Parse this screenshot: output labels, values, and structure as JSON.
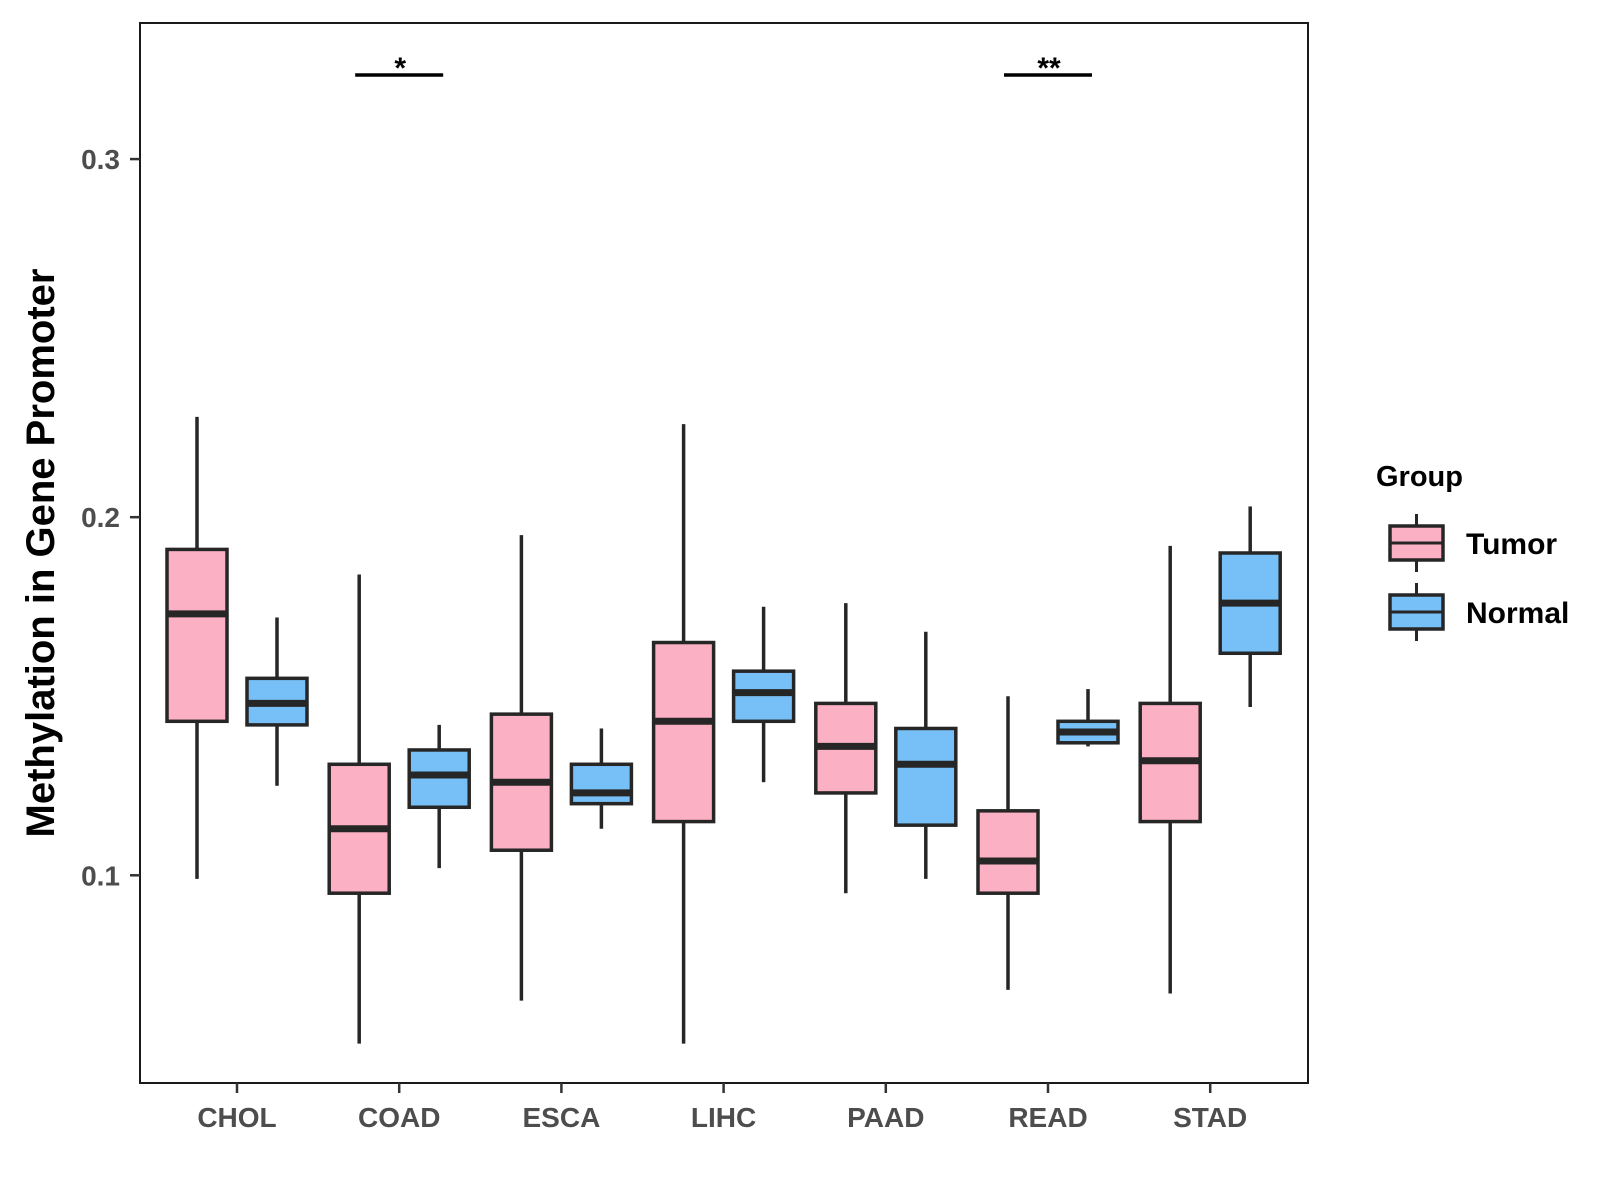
{
  "chart_data": {
    "type": "boxplot",
    "title": "",
    "xlabel": "",
    "ylabel": "Methylation in Gene Promoter",
    "ylim": [
      0.042,
      0.338
    ],
    "yticks": [
      0.1,
      0.2,
      0.3
    ],
    "ytick_labels": [
      "0.1",
      "0.2",
      "0.3"
    ],
    "categories": [
      "CHOL",
      "COAD",
      "ESCA",
      "LIHC",
      "PAAD",
      "READ",
      "STAD"
    ],
    "legend": {
      "title": "Group",
      "placement": "right",
      "entries": [
        "Tumor",
        "Normal"
      ]
    },
    "series": [
      {
        "name": "Tumor",
        "color": "#fbb1c3",
        "boxes": [
          {
            "whisker_low": 0.099,
            "q1": 0.143,
            "median": 0.173,
            "q3": 0.191,
            "whisker_high": 0.228
          },
          {
            "whisker_low": 0.053,
            "q1": 0.095,
            "median": 0.113,
            "q3": 0.131,
            "whisker_high": 0.184
          },
          {
            "whisker_low": 0.065,
            "q1": 0.107,
            "median": 0.126,
            "q3": 0.145,
            "whisker_high": 0.195
          },
          {
            "whisker_low": 0.053,
            "q1": 0.115,
            "median": 0.143,
            "q3": 0.165,
            "whisker_high": 0.226
          },
          {
            "whisker_low": 0.095,
            "q1": 0.123,
            "median": 0.136,
            "q3": 0.148,
            "whisker_high": 0.176
          },
          {
            "whisker_low": 0.068,
            "q1": 0.095,
            "median": 0.104,
            "q3": 0.118,
            "whisker_high": 0.15
          },
          {
            "whisker_low": 0.067,
            "q1": 0.115,
            "median": 0.132,
            "q3": 0.148,
            "whisker_high": 0.192
          }
        ]
      },
      {
        "name": "Normal",
        "color": "#77c0f7",
        "boxes": [
          {
            "whisker_low": 0.125,
            "q1": 0.142,
            "median": 0.148,
            "q3": 0.155,
            "whisker_high": 0.172
          },
          {
            "whisker_low": 0.102,
            "q1": 0.119,
            "median": 0.128,
            "q3": 0.135,
            "whisker_high": 0.142
          },
          {
            "whisker_low": 0.113,
            "q1": 0.12,
            "median": 0.123,
            "q3": 0.131,
            "whisker_high": 0.141
          },
          {
            "whisker_low": 0.126,
            "q1": 0.143,
            "median": 0.151,
            "q3": 0.157,
            "whisker_high": 0.175
          },
          {
            "whisker_low": 0.099,
            "q1": 0.114,
            "median": 0.131,
            "q3": 0.141,
            "whisker_high": 0.168
          },
          {
            "whisker_low": 0.136,
            "q1": 0.137,
            "median": 0.14,
            "q3": 0.143,
            "whisker_high": 0.152
          },
          {
            "whisker_low": 0.147,
            "q1": 0.162,
            "median": 0.176,
            "q3": 0.19,
            "whisker_high": 0.203
          }
        ]
      }
    ],
    "significance": [
      {
        "category": "COAD",
        "label": "*"
      },
      {
        "category": "READ",
        "label": "**"
      }
    ]
  }
}
